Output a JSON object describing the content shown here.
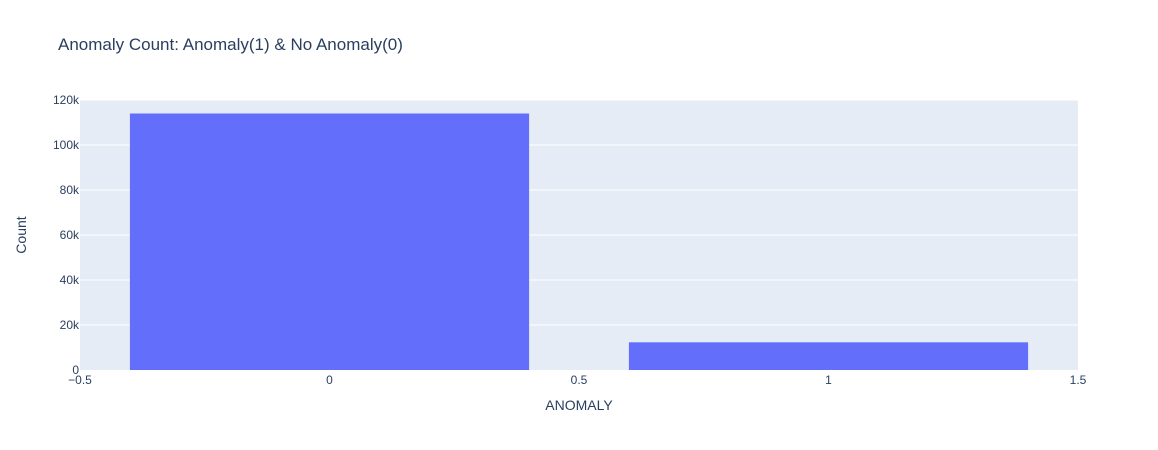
{
  "chart_data": {
    "type": "bar",
    "title": "Anomaly Count: Anomaly(1) & No Anomaly(0)",
    "xlabel": "ANOMALY",
    "ylabel": "Count",
    "x": [
      0,
      1
    ],
    "values": [
      114000,
      12300
    ],
    "bar_width": 0.8,
    "xlim": [
      -0.5,
      1.5
    ],
    "ylim": [
      0,
      120000
    ],
    "x_ticks": [
      -0.5,
      0,
      0.5,
      1,
      1.5
    ],
    "x_tick_labels": [
      "−0.5",
      "0",
      "0.5",
      "1",
      "1.5"
    ],
    "y_ticks": [
      0,
      20000,
      40000,
      60000,
      80000,
      100000,
      120000
    ],
    "y_tick_labels": [
      "0",
      "20k",
      "40k",
      "60k",
      "80k",
      "100k",
      "120k"
    ],
    "grid": true,
    "colors": {
      "bar": "#636efa",
      "plot_bg": "#e5ecf6",
      "grid": "#ffffff",
      "text": "#2a3f5f"
    }
  }
}
